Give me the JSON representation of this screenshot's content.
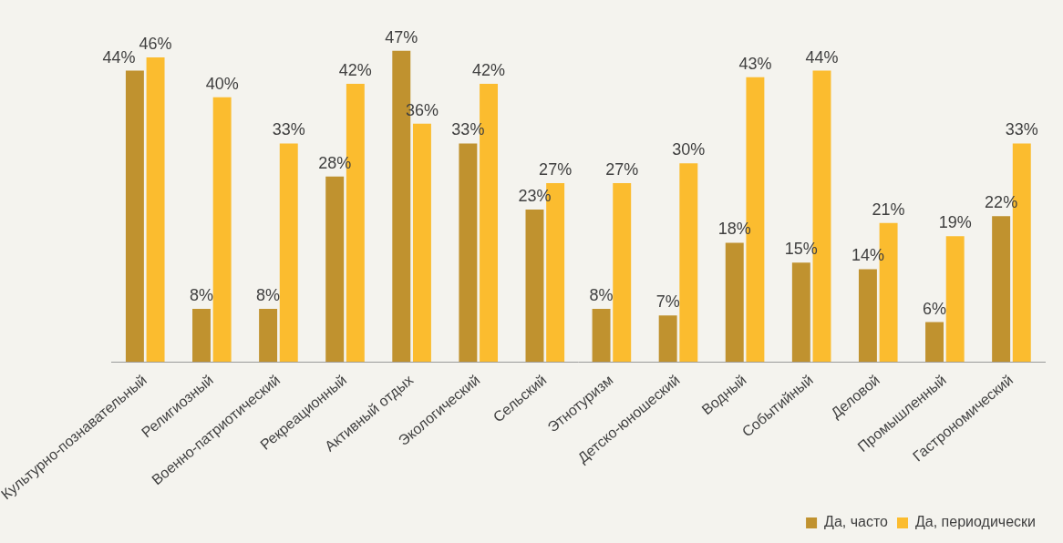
{
  "chart_data": {
    "type": "bar",
    "categories": [
      "Культурно-познавательный",
      "Религиозный",
      "Военно-патриотический",
      "Рекреационный",
      "Активный отдых",
      "Экологический",
      "Сельский",
      "Этнотуризм",
      "Детско-юношеский",
      "Водный",
      "Событийный",
      "Деловой",
      "Промышленный",
      "Гастрономический"
    ],
    "series": [
      {
        "name": "Да, часто",
        "color": "#c0922f",
        "values": [
          44,
          8,
          8,
          28,
          47,
          33,
          23,
          8,
          7,
          18,
          15,
          14,
          6,
          22
        ],
        "value_labels": [
          "44%",
          "8%",
          "8%",
          "28%",
          "47%",
          "33%",
          "23%",
          "8%",
          "7%",
          "18%",
          "15%",
          "14%",
          "6%",
          "22%"
        ]
      },
      {
        "name": "Да, периодически",
        "color": "#fbbc2f",
        "values": [
          46,
          40,
          33,
          42,
          36,
          42,
          27,
          27,
          30,
          43,
          44,
          21,
          19,
          33
        ],
        "value_labels": [
          "46%",
          "40%",
          "33%",
          "42%",
          "36%",
          "42%",
          "27%",
          "27%",
          "30%",
          "43%",
          "44%",
          "21%",
          "19%",
          "33%"
        ]
      }
    ],
    "grid": false,
    "legend": "bottom-right",
    "data_labels": true,
    "tick_labels": "x"
  }
}
